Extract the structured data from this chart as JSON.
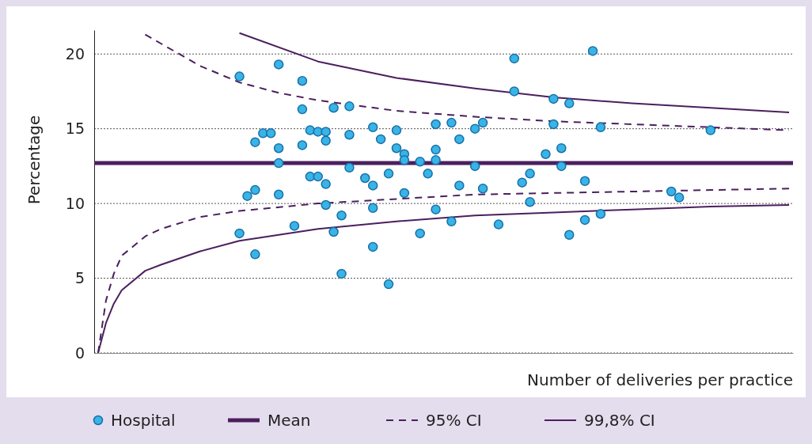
{
  "chart_data": {
    "type": "scatter",
    "xlabel": "Number of deliveries per practice",
    "ylabel": "Percentage",
    "categories": [
      null,
      null,
      null,
      null,
      null,
      null,
      null,
      null,
      null,
      null,
      null,
      null,
      null,
      null,
      null,
      null,
      null,
      null,
      null,
      null,
      null,
      null,
      null,
      null,
      null,
      null,
      null,
      null,
      null,
      null,
      null,
      null,
      null,
      null,
      null,
      null,
      null,
      null,
      null,
      null,
      null,
      null,
      null,
      null,
      null,
      null,
      null,
      null,
      null,
      null,
      null,
      null,
      null,
      null,
      null,
      null,
      null,
      null,
      null,
      null,
      null,
      null,
      null,
      null,
      null,
      null,
      null,
      null,
      null,
      null,
      null,
      null,
      null,
      null,
      null,
      null,
      null,
      null,
      null,
      null,
      null,
      null,
      null,
      null,
      null,
      null,
      null,
      null,
      null
    ],
    "ylim": [
      0,
      21.6
    ],
    "yticks": [
      0,
      5,
      10,
      15,
      20
    ],
    "grid": "y",
    "legend": "bottom",
    "ref_lines": [
      {
        "axis": "y",
        "value": 12.7,
        "label": "Mean",
        "color": "#4b1f5e"
      }
    ],
    "series": [
      {
        "name": "Hospital",
        "marker": "circle",
        "color": "#38b4e6",
        "values": [
          null,
          null,
          null,
          null,
          null,
          null,
          null,
          null,
          null,
          null,
          null,
          null,
          null,
          null,
          null,
          null,
          null,
          null,
          18.5,
          10.5,
          10.9,
          14.7,
          14.7,
          10.6,
          null,
          8.5,
          13.9,
          11.8,
          11.8,
          11.3,
          8.1,
          5.3,
          14.6,
          null,
          11.7,
          11.2,
          14.3,
          12.0,
          14.9,
          13.3,
          null,
          12.8,
          12.0,
          12.9,
          null,
          15.4,
          11.2,
          null,
          12.5,
          11.0,
          null,
          8.6,
          null,
          19.7,
          11.4,
          12.0,
          null,
          13.3,
          15.3,
          13.7,
          16.7,
          null,
          11.5,
          20.2,
          9.3,
          null,
          null,
          null,
          null,
          null,
          null,
          null,
          null,
          10.8,
          10.4,
          null,
          null,
          null,
          14.9,
          null,
          null,
          null,
          null,
          null,
          null,
          null,
          null,
          null,
          null
        ]
      },
      {
        "marker": "circle",
        "color": "#38b4e6",
        "values": [
          null,
          null,
          null,
          null,
          null,
          null,
          null,
          null,
          null,
          null,
          null,
          null,
          null,
          null,
          null,
          null,
          null,
          null,
          8.0,
          null,
          6.6,
          null,
          null,
          19.3,
          null,
          null,
          16.3,
          14.9,
          14.8,
          14.2,
          16.4,
          9.2,
          12.4,
          null,
          null,
          9.7,
          null,
          4.6,
          13.7,
          10.7,
          null,
          8.0,
          null,
          13.6,
          null,
          8.8,
          14.3,
          null,
          15.0,
          15.4,
          null,
          null,
          null,
          17.5,
          null,
          10.1,
          null,
          null,
          17.0,
          12.5,
          7.9,
          null,
          8.9,
          null,
          15.1,
          null,
          null,
          null,
          null,
          null,
          null,
          null,
          null,
          null,
          null,
          null,
          null,
          null,
          null,
          null,
          null,
          null,
          null,
          null,
          null,
          null,
          null,
          null,
          null
        ]
      },
      {
        "marker": "circle",
        "color": "#38b4e6",
        "values": [
          null,
          null,
          null,
          null,
          null,
          null,
          null,
          null,
          null,
          null,
          null,
          null,
          null,
          null,
          null,
          null,
          null,
          null,
          null,
          null,
          14.1,
          null,
          null,
          13.7,
          null,
          null,
          18.2,
          null,
          null,
          9.9,
          null,
          null,
          16.5,
          null,
          null,
          7.1,
          null,
          null,
          null,
          12.9,
          null,
          null,
          null,
          15.3,
          null,
          null,
          null,
          null,
          null,
          null,
          null,
          null,
          null,
          null,
          null,
          null,
          null,
          null,
          null,
          null,
          null,
          null,
          null,
          null,
          null,
          null,
          null,
          null,
          null,
          null,
          null,
          null,
          null,
          null,
          null,
          null,
          null,
          null,
          null,
          null,
          null,
          null,
          null,
          null,
          null,
          null,
          null,
          null,
          null
        ]
      },
      {
        "marker": "circle",
        "color": "#38b4e6",
        "values": [
          null,
          null,
          null,
          null,
          null,
          null,
          null,
          null,
          null,
          null,
          null,
          null,
          null,
          null,
          null,
          null,
          null,
          null,
          null,
          null,
          null,
          null,
          null,
          12.7,
          null,
          null,
          null,
          null,
          null,
          14.8,
          null,
          null,
          null,
          null,
          null,
          15.1,
          null,
          null,
          null,
          null,
          null,
          null,
          null,
          9.6,
          null,
          null,
          null,
          null,
          null,
          null,
          null,
          null,
          null,
          null,
          null,
          null,
          null,
          null,
          null,
          null,
          null,
          null,
          null,
          null,
          null,
          null,
          null,
          null,
          null,
          null,
          null,
          null,
          null,
          null,
          null,
          null,
          null,
          null,
          null,
          null,
          null,
          null,
          null,
          null,
          null,
          null,
          null,
          null,
          null
        ]
      },
      {
        "name": "95% CI",
        "type": "line",
        "line_style": "dashed",
        "color": "#4b1f5e",
        "values": [
          null,
          null,
          null,
          null,
          null,
          null,
          21.3,
          null,
          20.7,
          null,
          null,
          null,
          null,
          19.2,
          null,
          null,
          null,
          null,
          18.1,
          null,
          null,
          null,
          null,
          17.4,
          null,
          null,
          null,
          null,
          16.9,
          null,
          null,
          null,
          null,
          null,
          null,
          null,
          null,
          null,
          16.2,
          null,
          null,
          null,
          null,
          null,
          null,
          null,
          null,
          null,
          15.8,
          null,
          null,
          null,
          null,
          null,
          null,
          null,
          null,
          null,
          15.5,
          null,
          null,
          null,
          null,
          null,
          null,
          null,
          null,
          null,
          15.3,
          null,
          null,
          null,
          null,
          null,
          null,
          null,
          null,
          null,
          15.1,
          null,
          null,
          null,
          null,
          null,
          null,
          null,
          null,
          null,
          14.9
        ]
      },
      {
        "type": "line",
        "line_style": "dashed",
        "color": "#4b1f5e",
        "values": [
          0,
          3.5,
          5.3,
          6.5,
          null,
          null,
          7.8,
          null,
          8.3,
          null,
          null,
          null,
          null,
          9.1,
          null,
          null,
          null,
          null,
          9.5,
          null,
          null,
          null,
          null,
          null,
          null,
          null,
          null,
          null,
          10.0,
          null,
          null,
          null,
          null,
          null,
          null,
          null,
          null,
          null,
          10.3,
          null,
          null,
          null,
          null,
          null,
          null,
          null,
          null,
          null,
          10.6,
          null,
          null,
          null,
          null,
          null,
          null,
          null,
          null,
          null,
          10.7,
          null,
          null,
          null,
          null,
          null,
          null,
          null,
          null,
          null,
          10.8,
          null,
          null,
          null,
          null,
          null,
          null,
          null,
          null,
          null,
          10.9,
          null,
          null,
          null,
          null,
          null,
          null,
          null,
          null,
          null,
          11.0
        ]
      },
      {
        "name": "99,8% CI",
        "type": "line",
        "line_style": "solid",
        "color": "#4b1f5e",
        "values": [
          null,
          null,
          null,
          null,
          null,
          null,
          null,
          null,
          null,
          null,
          null,
          null,
          null,
          null,
          null,
          null,
          null,
          null,
          21.4,
          null,
          null,
          null,
          null,
          null,
          null,
          null,
          null,
          null,
          19.5,
          null,
          null,
          null,
          null,
          null,
          null,
          null,
          null,
          null,
          18.4,
          null,
          null,
          null,
          null,
          null,
          null,
          null,
          null,
          null,
          17.7,
          null,
          null,
          null,
          null,
          null,
          null,
          null,
          null,
          null,
          17.1,
          null,
          null,
          null,
          null,
          null,
          null,
          null,
          null,
          null,
          16.7,
          null,
          null,
          null,
          null,
          null,
          null,
          null,
          null,
          null,
          16.4,
          null,
          null,
          null,
          null,
          null,
          null,
          null,
          null,
          null,
          16.1
        ]
      },
      {
        "type": "line",
        "line_style": "solid",
        "color": "#4b1f5e",
        "values": [
          0,
          2.0,
          3.3,
          4.2,
          null,
          null,
          5.5,
          null,
          5.9,
          null,
          null,
          null,
          null,
          6.8,
          null,
          null,
          null,
          null,
          7.5,
          null,
          null,
          null,
          null,
          null,
          null,
          null,
          null,
          null,
          8.3,
          null,
          null,
          null,
          null,
          null,
          null,
          null,
          null,
          null,
          8.8,
          null,
          null,
          null,
          null,
          null,
          null,
          null,
          null,
          null,
          9.2,
          null,
          null,
          null,
          null,
          null,
          null,
          null,
          null,
          null,
          9.4,
          null,
          null,
          null,
          null,
          null,
          null,
          null,
          null,
          null,
          9.6,
          null,
          null,
          null,
          null,
          null,
          null,
          null,
          null,
          null,
          9.8,
          null,
          null,
          null,
          null,
          null,
          null,
          null,
          null,
          null,
          9.9
        ]
      }
    ]
  }
}
